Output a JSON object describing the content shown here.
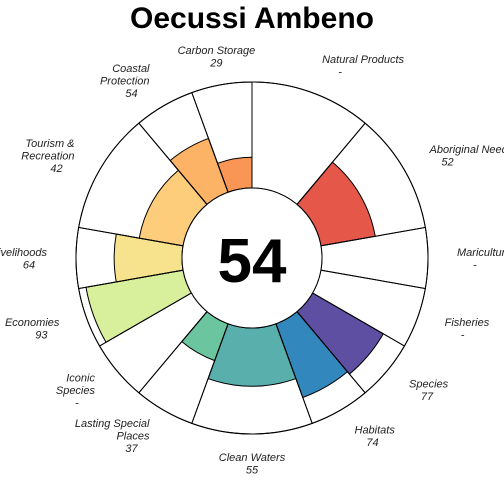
{
  "chart_data": {
    "type": "flower",
    "title": "Oecussi Ambeno",
    "center_score": "54",
    "max_value": 100,
    "petals": [
      {
        "key": "np",
        "label_lines": [
          "Natural Products"
        ],
        "score_text": "-",
        "value": null,
        "weight": 1,
        "color": "#9E0142"
      },
      {
        "key": "an",
        "label_lines": [
          "Aboriginal Needs"
        ],
        "score_text": "52",
        "value": 52,
        "weight": 1,
        "color": "#E55749"
      },
      {
        "key": "mar",
        "label_lines": [
          "Mariculture"
        ],
        "score_text": "-",
        "value": null,
        "weight": 0.5,
        "color": "#F57A48"
      },
      {
        "key": "fis",
        "label_lines": [
          "Fisheries"
        ],
        "score_text": "-",
        "value": null,
        "weight": 0.5,
        "color": "#F89556"
      },
      {
        "key": "spp",
        "label_lines": [
          "Species"
        ],
        "score_text": "77",
        "value": 77,
        "weight": 0.5,
        "color": "#5E4FA2"
      },
      {
        "key": "hab",
        "label_lines": [
          "Habitats"
        ],
        "score_text": "74",
        "value": 74,
        "weight": 0.5,
        "color": "#3288BD"
      },
      {
        "key": "cw",
        "label_lines": [
          "Clean Waters"
        ],
        "score_text": "55",
        "value": 55,
        "weight": 1,
        "color": "#58AFAC"
      },
      {
        "key": "lsp",
        "label_lines": [
          "Lasting Special",
          "Places"
        ],
        "score_text": "37",
        "value": 37,
        "weight": 0.5,
        "color": "#6BC6A0"
      },
      {
        "key": "ico",
        "label_lines": [
          "Iconic",
          "Species"
        ],
        "score_text": "-",
        "value": null,
        "weight": 0.5,
        "color": "#ABDDA4"
      },
      {
        "key": "eco",
        "label_lines": [
          "Economies"
        ],
        "score_text": "93",
        "value": 93,
        "weight": 0.5,
        "color": "#D8EF9B"
      },
      {
        "key": "liv",
        "label_lines": [
          "Livelihoods"
        ],
        "score_text": "64",
        "value": 64,
        "weight": 0.5,
        "color": "#F7E38E"
      },
      {
        "key": "tr",
        "label_lines": [
          "Tourism &",
          "Recreation"
        ],
        "score_text": "42",
        "value": 42,
        "weight": 1,
        "color": "#FDCD7C"
      },
      {
        "key": "cp",
        "label_lines": [
          "Coastal",
          "Protection"
        ],
        "score_text": "54",
        "value": 54,
        "weight": 0.5,
        "color": "#FDB366"
      },
      {
        "key": "cs",
        "label_lines": [
          "Carbon Storage"
        ],
        "score_text": "29",
        "value": 29,
        "weight": 0.5,
        "color": "#F99655"
      }
    ]
  }
}
